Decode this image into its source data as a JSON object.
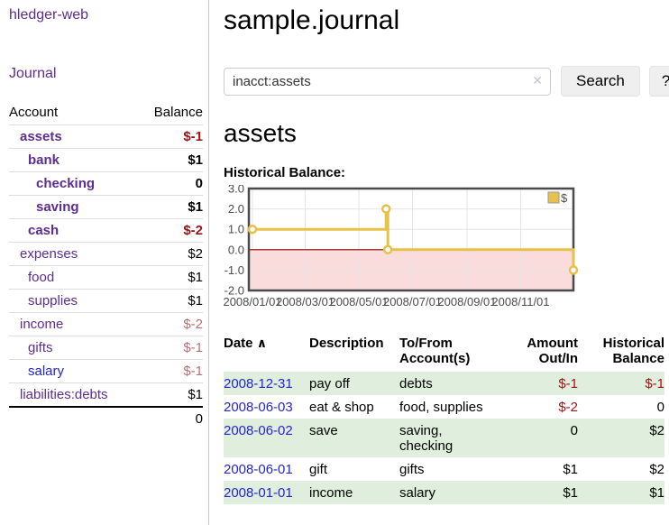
{
  "app": {
    "title": "hledger-web"
  },
  "sidebar": {
    "journal_link": "Journal",
    "accounts_table": {
      "headers": [
        "Account",
        "Balance"
      ],
      "rows": [
        {
          "account": "assets",
          "balance": "$-1",
          "level": 1,
          "bold": true,
          "negative": "strong",
          "blue": false
        },
        {
          "account": "bank",
          "balance": "$1",
          "level": 2,
          "bold": true,
          "negative": null,
          "blue": false
        },
        {
          "account": "checking",
          "balance": "0",
          "level": 3,
          "bold": true,
          "negative": null,
          "blue": false
        },
        {
          "account": "saving",
          "balance": "$1",
          "level": 3,
          "bold": true,
          "negative": null,
          "blue": false
        },
        {
          "account": "cash",
          "balance": "$-2",
          "level": 2,
          "bold": true,
          "negative": "strong",
          "blue": false
        },
        {
          "account": "expenses",
          "balance": "$2",
          "level": 1,
          "bold": false,
          "negative": null,
          "blue": false
        },
        {
          "account": "food",
          "balance": "$1",
          "level": 2,
          "bold": false,
          "negative": null,
          "blue": false
        },
        {
          "account": "supplies",
          "balance": "$1",
          "level": 2,
          "bold": false,
          "negative": null,
          "blue": false
        },
        {
          "account": "income",
          "balance": "$-2",
          "level": 1,
          "bold": false,
          "negative": "muted",
          "blue": false
        },
        {
          "account": "gifts",
          "balance": "$-1",
          "level": 2,
          "bold": false,
          "negative": "muted",
          "blue": false
        },
        {
          "account": "salary",
          "balance": "$-1",
          "level": 2,
          "bold": false,
          "negative": "muted",
          "blue": true
        },
        {
          "account": "liabilities:debts",
          "balance": "$1",
          "level": 1,
          "bold": false,
          "negative": null,
          "blue": false
        }
      ],
      "total": "0"
    }
  },
  "main": {
    "title": "sample.journal",
    "search": {
      "value": "inacct:assets",
      "clear_icon": "✕",
      "button": "Search",
      "help_button": "?"
    },
    "account_heading": "assets",
    "chart_label": "Historical Balance:",
    "register_table": {
      "headers": [
        "Date",
        "Description",
        "To/From Account(s)",
        "Amount Out/In",
        "Historical Balance"
      ],
      "sort_icon": "∧",
      "rows": [
        {
          "date": "2008-12-31",
          "description": "pay off",
          "accounts": "debts",
          "amount": "$-1",
          "balance": "$-1",
          "amount_negative": true,
          "balance_negative": true,
          "shaded": true
        },
        {
          "date": "2008-06-03",
          "description": "eat & shop",
          "accounts": "food, supplies",
          "amount": "$-2",
          "balance": "0",
          "amount_negative": true,
          "balance_negative": false,
          "shaded": false
        },
        {
          "date": "2008-06-02",
          "description": "save",
          "accounts": "saving, checking",
          "amount": "0",
          "balance": "$2",
          "amount_negative": false,
          "balance_negative": false,
          "shaded": true
        },
        {
          "date": "2008-06-01",
          "description": "gift",
          "accounts": "gifts",
          "amount": "$1",
          "balance": "$2",
          "amount_negative": false,
          "balance_negative": false,
          "shaded": false
        },
        {
          "date": "2008-01-01",
          "description": "income",
          "accounts": "salary",
          "amount": "$1",
          "balance": "$1",
          "amount_negative": false,
          "balance_negative": false,
          "shaded": true
        }
      ]
    }
  },
  "chart_data": {
    "type": "line",
    "step": true,
    "title": "Historical Balance:",
    "series": [
      {
        "name": "$",
        "color": "#E8C14A",
        "points": [
          [
            "2008-01-01",
            1.0
          ],
          [
            "2008-06-01",
            2.0
          ],
          [
            "2008-06-03",
            0.0
          ],
          [
            "2008-12-31",
            -1.0
          ]
        ]
      }
    ],
    "x_ticks": [
      "2008/01/01",
      "2008/03/01",
      "2008/05/01",
      "2008/07/01",
      "2008/09/01",
      "2008/11/01"
    ],
    "y_ticks": [
      3.0,
      2.0,
      1.0,
      0.0,
      -1.0,
      -2.0
    ],
    "xlim": [
      "2008-01-01",
      "2008-12-31"
    ],
    "ylim": [
      -2.0,
      3.0
    ],
    "grid": true,
    "negative_region": {
      "from": -2.0,
      "to": 0.0,
      "color": "#FBDCDC",
      "line_color": "#8B0000"
    },
    "legend": {
      "label": "$",
      "position": "top-right"
    }
  },
  "colors": {
    "link_purple": "#5c2d91",
    "link_blue": "#2525cc",
    "negative_strong": "#a01414",
    "negative_muted": "#b96f6f",
    "row_highlight_green": "#dfeedd",
    "chart_series_gold": "#E8C14A",
    "chart_negative_fill": "#FBDCDC",
    "chart_zero_line": "#8B0000",
    "button_background": "#efefef"
  }
}
